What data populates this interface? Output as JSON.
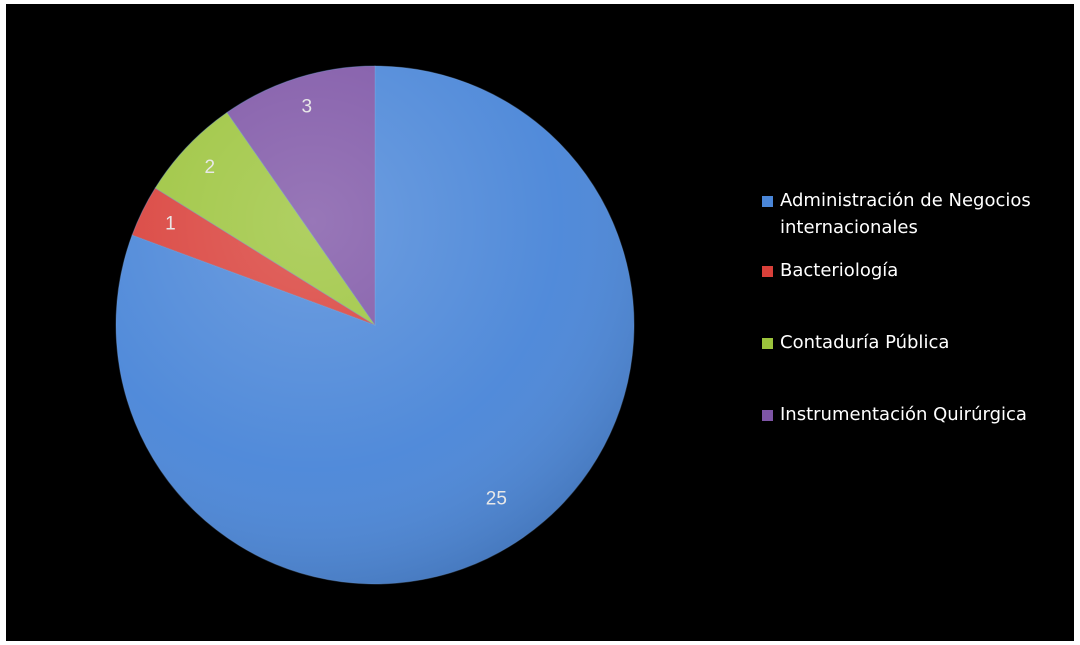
{
  "chart_data": {
    "type": "pie",
    "title": "",
    "categories": [
      "Administración de Negocios internacionales",
      "Bacteriología",
      "Contaduría Pública",
      "Instrumentación Quirúrgica"
    ],
    "values": [
      25,
      1,
      2,
      3
    ],
    "data_labels": [
      "25",
      "1",
      "2",
      "3"
    ],
    "colors": [
      "#4a86d8",
      "#d9403a",
      "#9cc43c",
      "#7e55a6"
    ],
    "start_angle": "12 o'clock",
    "direction": "clockwise",
    "legend_position": "right",
    "background": "#000000"
  }
}
